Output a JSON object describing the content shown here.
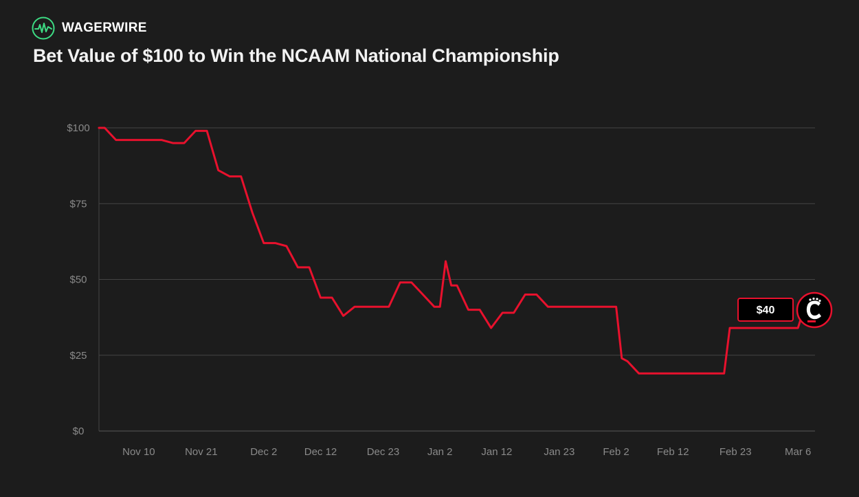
{
  "brand": {
    "name": "WAGERWIRE",
    "accent": "#3ddc84",
    "icon": "pulse-icon"
  },
  "chart_data": {
    "type": "line",
    "title": "Bet Value of $100 to Win the NCAAM National Championship",
    "xlabel": "",
    "ylabel": "",
    "x_tick_labels": [
      "Nov 10",
      "Nov 21",
      "Dec 2",
      "Dec 12",
      "Dec 23",
      "Jan 2",
      "Jan 12",
      "Jan 23",
      "Feb 2",
      "Feb 12",
      "Feb 23",
      "Mar 6"
    ],
    "y_tick_labels": [
      "$100",
      "$75",
      "$50",
      "$25",
      "$0"
    ],
    "y_ticks": [
      100,
      75,
      50,
      25,
      0
    ],
    "ylim": [
      0,
      100
    ],
    "x_range_days": [
      0,
      126
    ],
    "x_tick_days": [
      7,
      18,
      29,
      39,
      50,
      60,
      70,
      81,
      91,
      101,
      112,
      123
    ],
    "grid": true,
    "series": [
      {
        "name": "Cincinnati Bearcats",
        "color": "#e8112d",
        "x": [
          0,
          1,
          3,
          5,
          7,
          9,
          11,
          13,
          15,
          17,
          19,
          21,
          23,
          25,
          27,
          29,
          31,
          33,
          35,
          37,
          39,
          41,
          43,
          45,
          47,
          49,
          51,
          53,
          55,
          57,
          59,
          60,
          61,
          62,
          63,
          65,
          67,
          69,
          71,
          73,
          75,
          77,
          79,
          81,
          83,
          85,
          87,
          89,
          91,
          92,
          93,
          95,
          97,
          99,
          101,
          103,
          105,
          107,
          109,
          110,
          111,
          113,
          115,
          117,
          119,
          121,
          123,
          124
        ],
        "values": [
          100,
          100,
          96,
          96,
          96,
          96,
          96,
          95,
          95,
          99,
          99,
          86,
          84,
          84,
          72,
          62,
          62,
          61,
          54,
          54,
          44,
          44,
          38,
          41,
          41,
          41,
          41,
          49,
          49,
          45,
          41,
          41,
          56,
          48,
          48,
          40,
          40,
          34,
          39,
          39,
          45,
          45,
          41,
          41,
          41,
          41,
          41,
          41,
          41,
          24,
          23,
          19,
          19,
          19,
          19,
          19,
          19,
          19,
          19,
          19,
          34,
          34,
          34,
          34,
          34,
          34,
          34,
          40
        ]
      }
    ],
    "annotation": {
      "label": "$40",
      "team_icon": "bearcats-c-logo-icon"
    }
  }
}
